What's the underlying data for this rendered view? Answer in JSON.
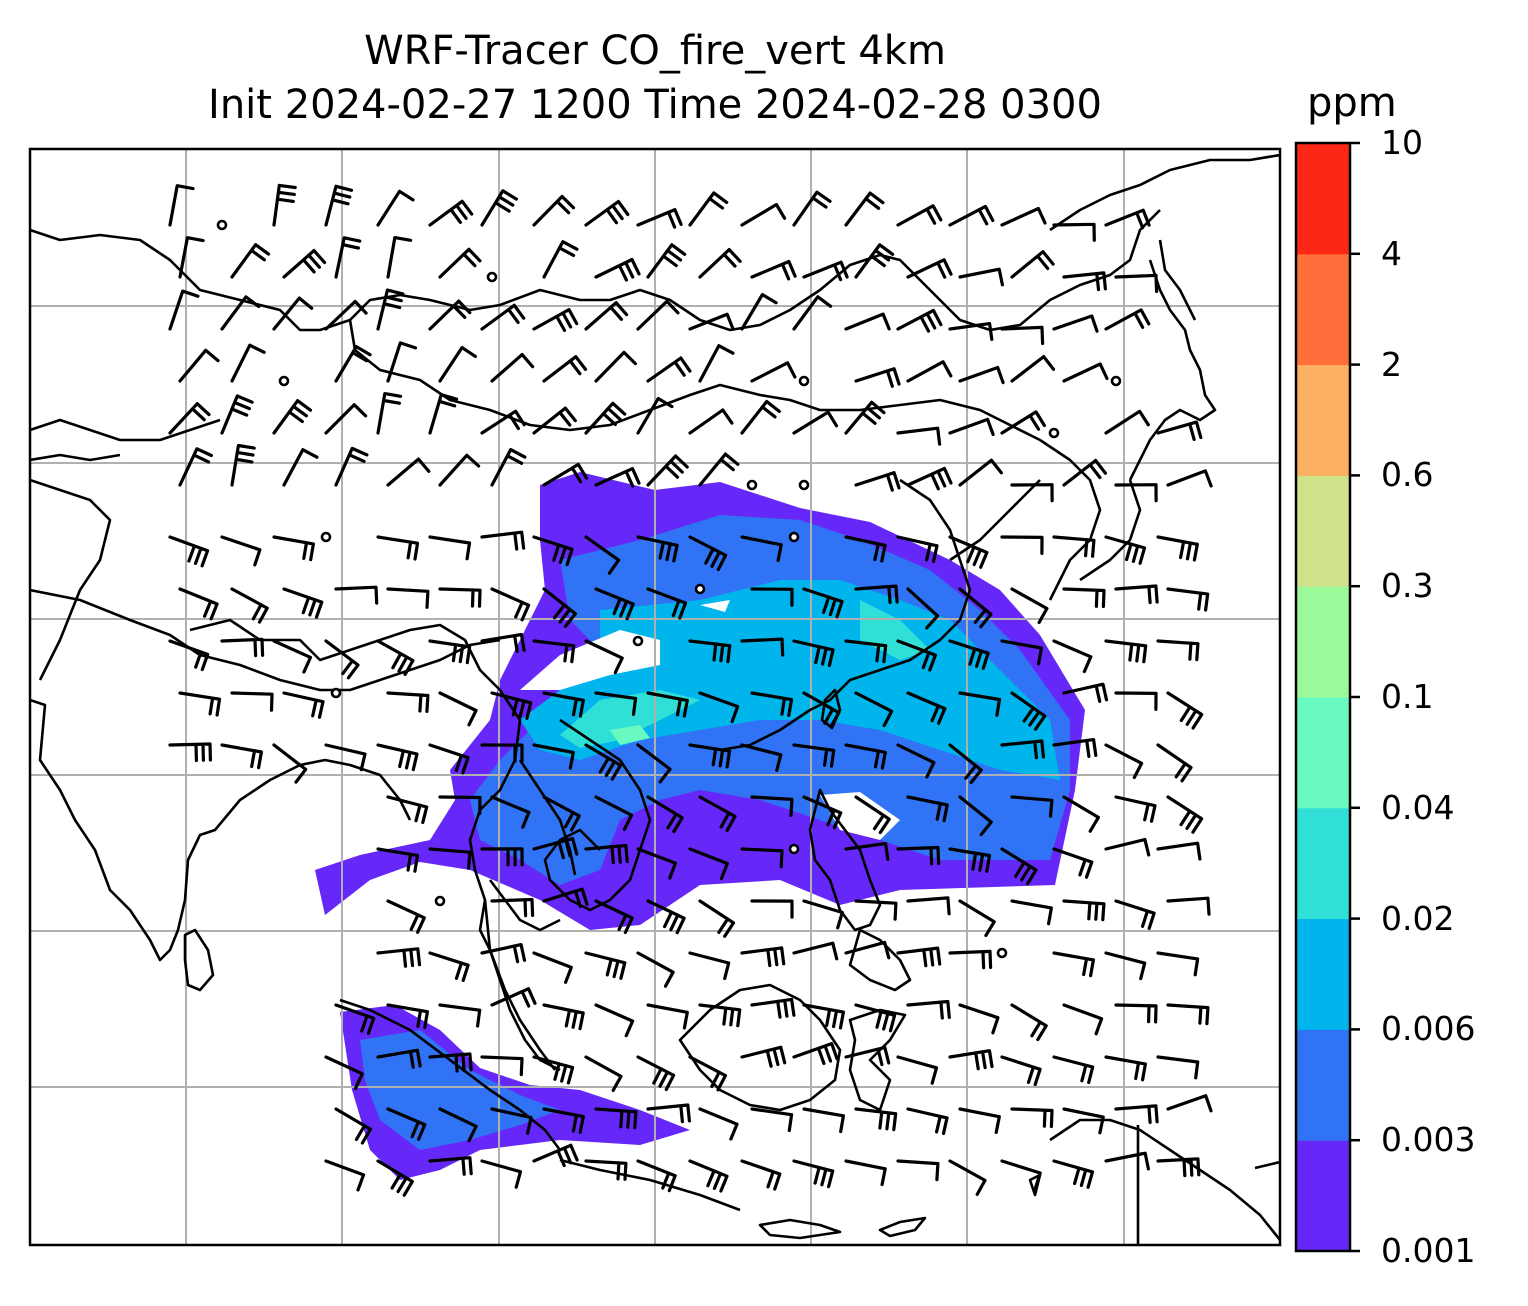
{
  "title": {
    "line1": "WRF-Tracer CO_fire_vert 4km",
    "line2": "Init 2024-02-27 1200 Time 2024-02-28 0300"
  },
  "colorbar": {
    "label": "ppm",
    "ticks": [
      "0.001",
      "0.003",
      "0.006",
      "0.02",
      "0.04",
      "0.1",
      "0.3",
      "0.6",
      "2",
      "4",
      "10"
    ],
    "colors": [
      "#6628f8",
      "#3073f4",
      "#00b4ec",
      "#30e0d6",
      "#68fac0",
      "#9afa9a",
      "#cee289",
      "#fdb062",
      "#fe6f3b",
      "#fd2715"
    ]
  },
  "map": {
    "field": "CO_fire_vert",
    "units": "ppm",
    "gridlines": true,
    "coastline_color": "#000000",
    "gridline_color": "#b0b0b0",
    "wind_barb_color": "#000000"
  }
}
